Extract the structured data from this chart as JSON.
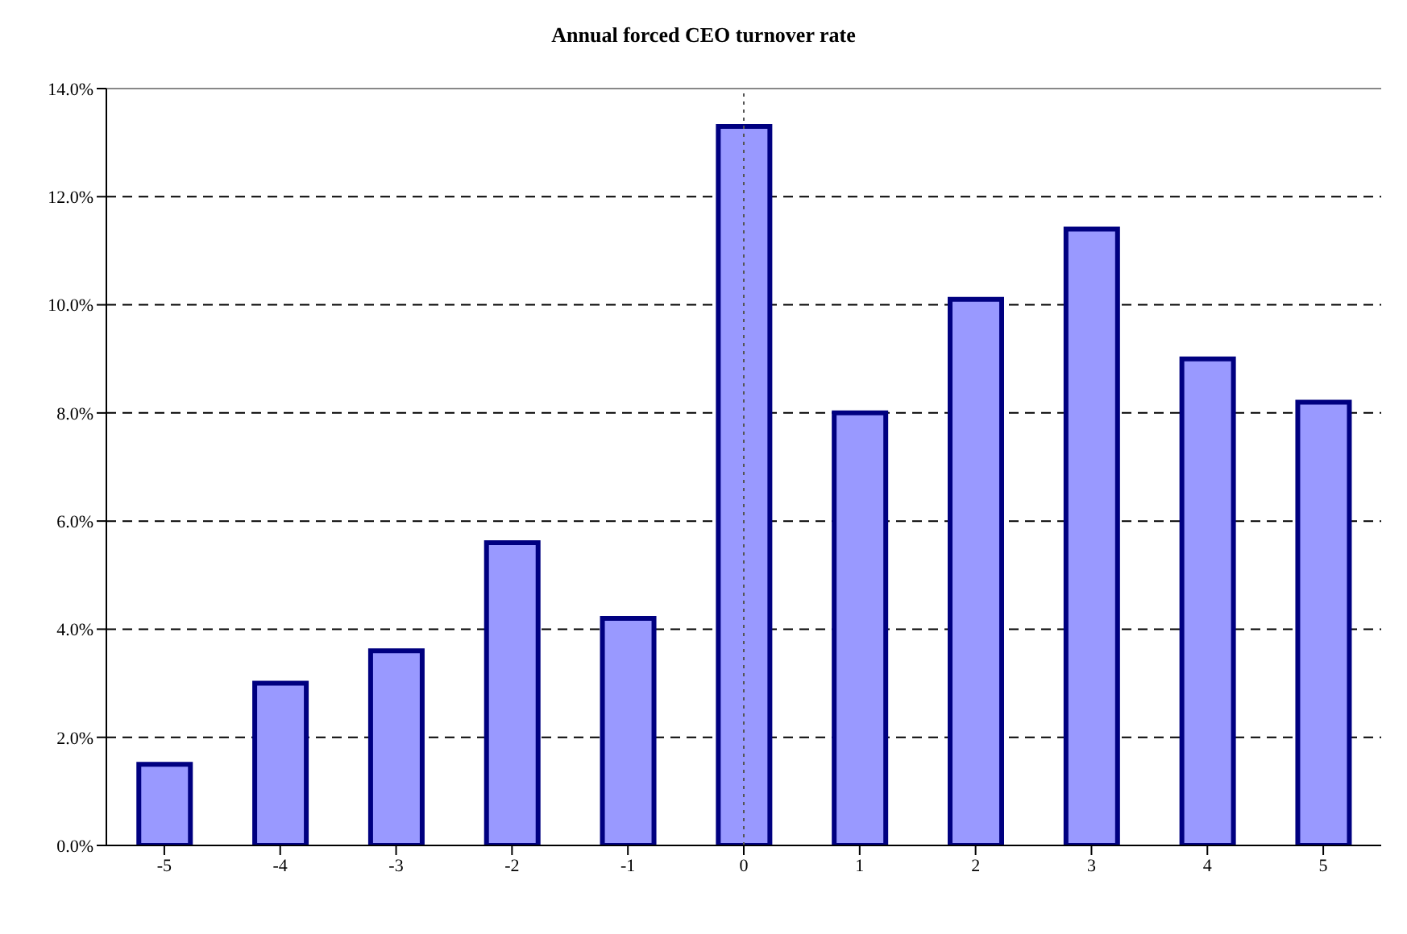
{
  "chart_data": {
    "type": "bar",
    "title": "Annual forced CEO turnover rate",
    "categories": [
      "-5",
      "-4",
      "-3",
      "-2",
      "-1",
      "0",
      "1",
      "2",
      "3",
      "4",
      "5"
    ],
    "series": [
      {
        "color": "#9999ff",
        "values": [
          1.5,
          3.0,
          3.6,
          5.6,
          4.2,
          13.3,
          8.0,
          10.1,
          11.4,
          9.0,
          8.2
        ]
      }
    ],
    "ylim": [
      0,
      14
    ],
    "yticks": [
      {
        "value": 0,
        "label": "0.0%"
      },
      {
        "value": 2,
        "label": "2.0%"
      },
      {
        "value": 4,
        "label": "4.0%"
      },
      {
        "value": 6,
        "label": "6.0%"
      },
      {
        "value": 8,
        "label": "8.0%"
      },
      {
        "value": 10,
        "label": "10.0%"
      },
      {
        "value": 12,
        "label": "12.0%"
      },
      {
        "value": 14,
        "label": "14.0%"
      }
    ],
    "grid": "y",
    "ref_lines": [
      {
        "axis": "x",
        "value": "0",
        "line_style": "dotted",
        "color": "#555555"
      }
    ]
  }
}
